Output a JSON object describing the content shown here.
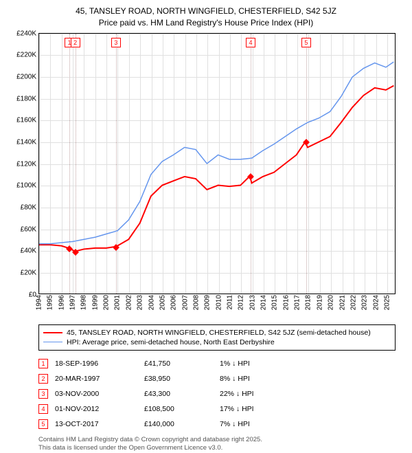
{
  "title_line1": "45, TANSLEY ROAD, NORTH WINGFIELD, CHESTERFIELD, S42 5JZ",
  "title_line2": "Price paid vs. HM Land Registry's House Price Index (HPI)",
  "chart": {
    "type": "line",
    "background_color": "#ffffff",
    "grid_color": "#e0e0e0",
    "border_color": "#000000",
    "xlim": [
      1994,
      2025.8
    ],
    "ylim": [
      0,
      240000
    ],
    "ytick_step": 20000,
    "yticks": [
      "£0",
      "£20K",
      "£40K",
      "£60K",
      "£80K",
      "£100K",
      "£120K",
      "£140K",
      "£160K",
      "£180K",
      "£200K",
      "£220K",
      "£240K"
    ],
    "xticks": [
      1994,
      1995,
      1996,
      1997,
      1998,
      1999,
      2000,
      2001,
      2002,
      2003,
      2004,
      2005,
      2006,
      2007,
      2008,
      2009,
      2010,
      2011,
      2012,
      2013,
      2014,
      2015,
      2016,
      2017,
      2018,
      2019,
      2020,
      2021,
      2022,
      2023,
      2024,
      2025
    ],
    "axis_fontsize": 10,
    "series": [
      {
        "name": "price_paid",
        "label": "45, TANSLEY ROAD, NORTH WINGFIELD, CHESTERFIELD, S42 5JZ (semi-detached house)",
        "color": "#ff0000",
        "line_width": 2,
        "data": [
          [
            1994,
            45000
          ],
          [
            1995,
            45000
          ],
          [
            1996,
            44000
          ],
          [
            1996.7,
            41750
          ],
          [
            1997.2,
            38950
          ],
          [
            1998,
            41000
          ],
          [
            1999,
            42000
          ],
          [
            2000,
            42000
          ],
          [
            2000.84,
            43300
          ],
          [
            2001,
            44000
          ],
          [
            2002,
            50000
          ],
          [
            2003,
            65000
          ],
          [
            2004,
            90000
          ],
          [
            2005,
            100000
          ],
          [
            2006,
            104000
          ],
          [
            2007,
            108000
          ],
          [
            2008,
            106000
          ],
          [
            2009,
            96000
          ],
          [
            2010,
            100000
          ],
          [
            2011,
            99000
          ],
          [
            2012,
            100000
          ],
          [
            2012.84,
            108500
          ],
          [
            2013,
            102000
          ],
          [
            2014,
            108000
          ],
          [
            2015,
            112000
          ],
          [
            2016,
            120000
          ],
          [
            2017,
            128000
          ],
          [
            2017.78,
            140000
          ],
          [
            2018,
            135000
          ],
          [
            2019,
            140000
          ],
          [
            2020,
            145000
          ],
          [
            2021,
            158000
          ],
          [
            2022,
            172000
          ],
          [
            2023,
            183000
          ],
          [
            2024,
            190000
          ],
          [
            2025,
            188000
          ],
          [
            2025.7,
            192000
          ]
        ]
      },
      {
        "name": "hpi",
        "label": "HPI: Average price, semi-detached house, North East Derbyshire",
        "color": "#6495ed",
        "line_width": 1.5,
        "data": [
          [
            1994,
            46000
          ],
          [
            1995,
            46000
          ],
          [
            1996,
            47000
          ],
          [
            1997,
            48000
          ],
          [
            1998,
            50000
          ],
          [
            1999,
            52000
          ],
          [
            2000,
            55000
          ],
          [
            2001,
            58000
          ],
          [
            2002,
            68000
          ],
          [
            2003,
            85000
          ],
          [
            2004,
            110000
          ],
          [
            2005,
            122000
          ],
          [
            2006,
            128000
          ],
          [
            2007,
            135000
          ],
          [
            2008,
            133000
          ],
          [
            2009,
            120000
          ],
          [
            2010,
            128000
          ],
          [
            2011,
            124000
          ],
          [
            2012,
            124000
          ],
          [
            2013,
            125000
          ],
          [
            2014,
            132000
          ],
          [
            2015,
            138000
          ],
          [
            2016,
            145000
          ],
          [
            2017,
            152000
          ],
          [
            2018,
            158000
          ],
          [
            2019,
            162000
          ],
          [
            2020,
            168000
          ],
          [
            2021,
            182000
          ],
          [
            2022,
            200000
          ],
          [
            2023,
            208000
          ],
          [
            2024,
            213000
          ],
          [
            2025,
            209000
          ],
          [
            2025.7,
            214000
          ]
        ]
      }
    ],
    "markers": [
      {
        "n": "1",
        "x": 1996.7,
        "y": 41750
      },
      {
        "n": "2",
        "x": 1997.22,
        "y": 38950
      },
      {
        "n": "3",
        "x": 2000.84,
        "y": 43300
      },
      {
        "n": "4",
        "x": 2012.84,
        "y": 108500
      },
      {
        "n": "5",
        "x": 2017.78,
        "y": 140000
      }
    ],
    "marker_box_color": "#ff0000",
    "marker_line_color": "#c0a0a0"
  },
  "legend": {
    "rows": [
      {
        "color": "#ff0000",
        "width": 2
      },
      {
        "color": "#6495ed",
        "width": 1.5
      }
    ]
  },
  "transactions": [
    {
      "n": "1",
      "date": "18-SEP-1996",
      "price": "£41,750",
      "delta": "1% ↓ HPI"
    },
    {
      "n": "2",
      "date": "20-MAR-1997",
      "price": "£38,950",
      "delta": "8% ↓ HPI"
    },
    {
      "n": "3",
      "date": "03-NOV-2000",
      "price": "£43,300",
      "delta": "22% ↓ HPI"
    },
    {
      "n": "4",
      "date": "01-NOV-2012",
      "price": "£108,500",
      "delta": "17% ↓ HPI"
    },
    {
      "n": "5",
      "date": "13-OCT-2017",
      "price": "£140,000",
      "delta": "7% ↓ HPI"
    }
  ],
  "footer_line1": "Contains HM Land Registry data © Crown copyright and database right 2025.",
  "footer_line2": "This data is licensed under the Open Government Licence v3.0."
}
